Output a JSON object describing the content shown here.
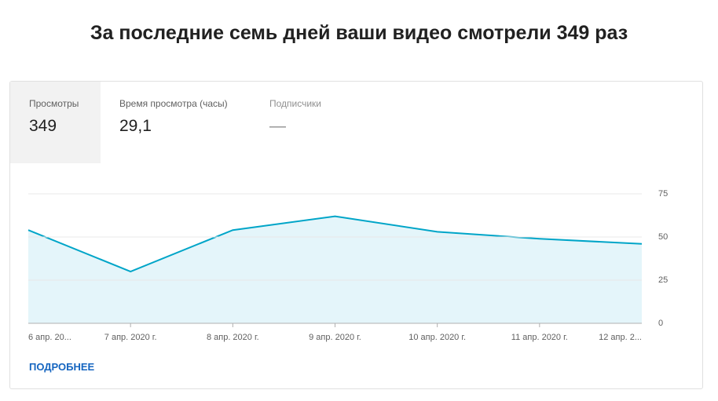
{
  "header": {
    "title": "За последние семь дней ваши видео смотрели 349 раз"
  },
  "tabs": [
    {
      "label": "Просмотры",
      "value": "349"
    },
    {
      "label": "Время просмотра (часы)",
      "value": "29,1"
    },
    {
      "label": "Подписчики",
      "value": "—"
    }
  ],
  "chart_data": {
    "type": "area",
    "categories": [
      "6 апр. 20...",
      "7 апр. 2020 г.",
      "8 апр. 2020 г.",
      "9 апр. 2020 г.",
      "10 апр. 2020 г.",
      "11 апр. 2020 г.",
      "12 апр. 2..."
    ],
    "values": [
      54,
      30,
      54,
      62,
      53,
      49,
      46
    ],
    "color": "#00a5c8",
    "fill": "#e4f5fa",
    "ylim": [
      0,
      75
    ],
    "yticks": [
      0,
      25,
      50,
      75
    ],
    "grid": true
  },
  "link": "ПОДРОБНЕЕ"
}
